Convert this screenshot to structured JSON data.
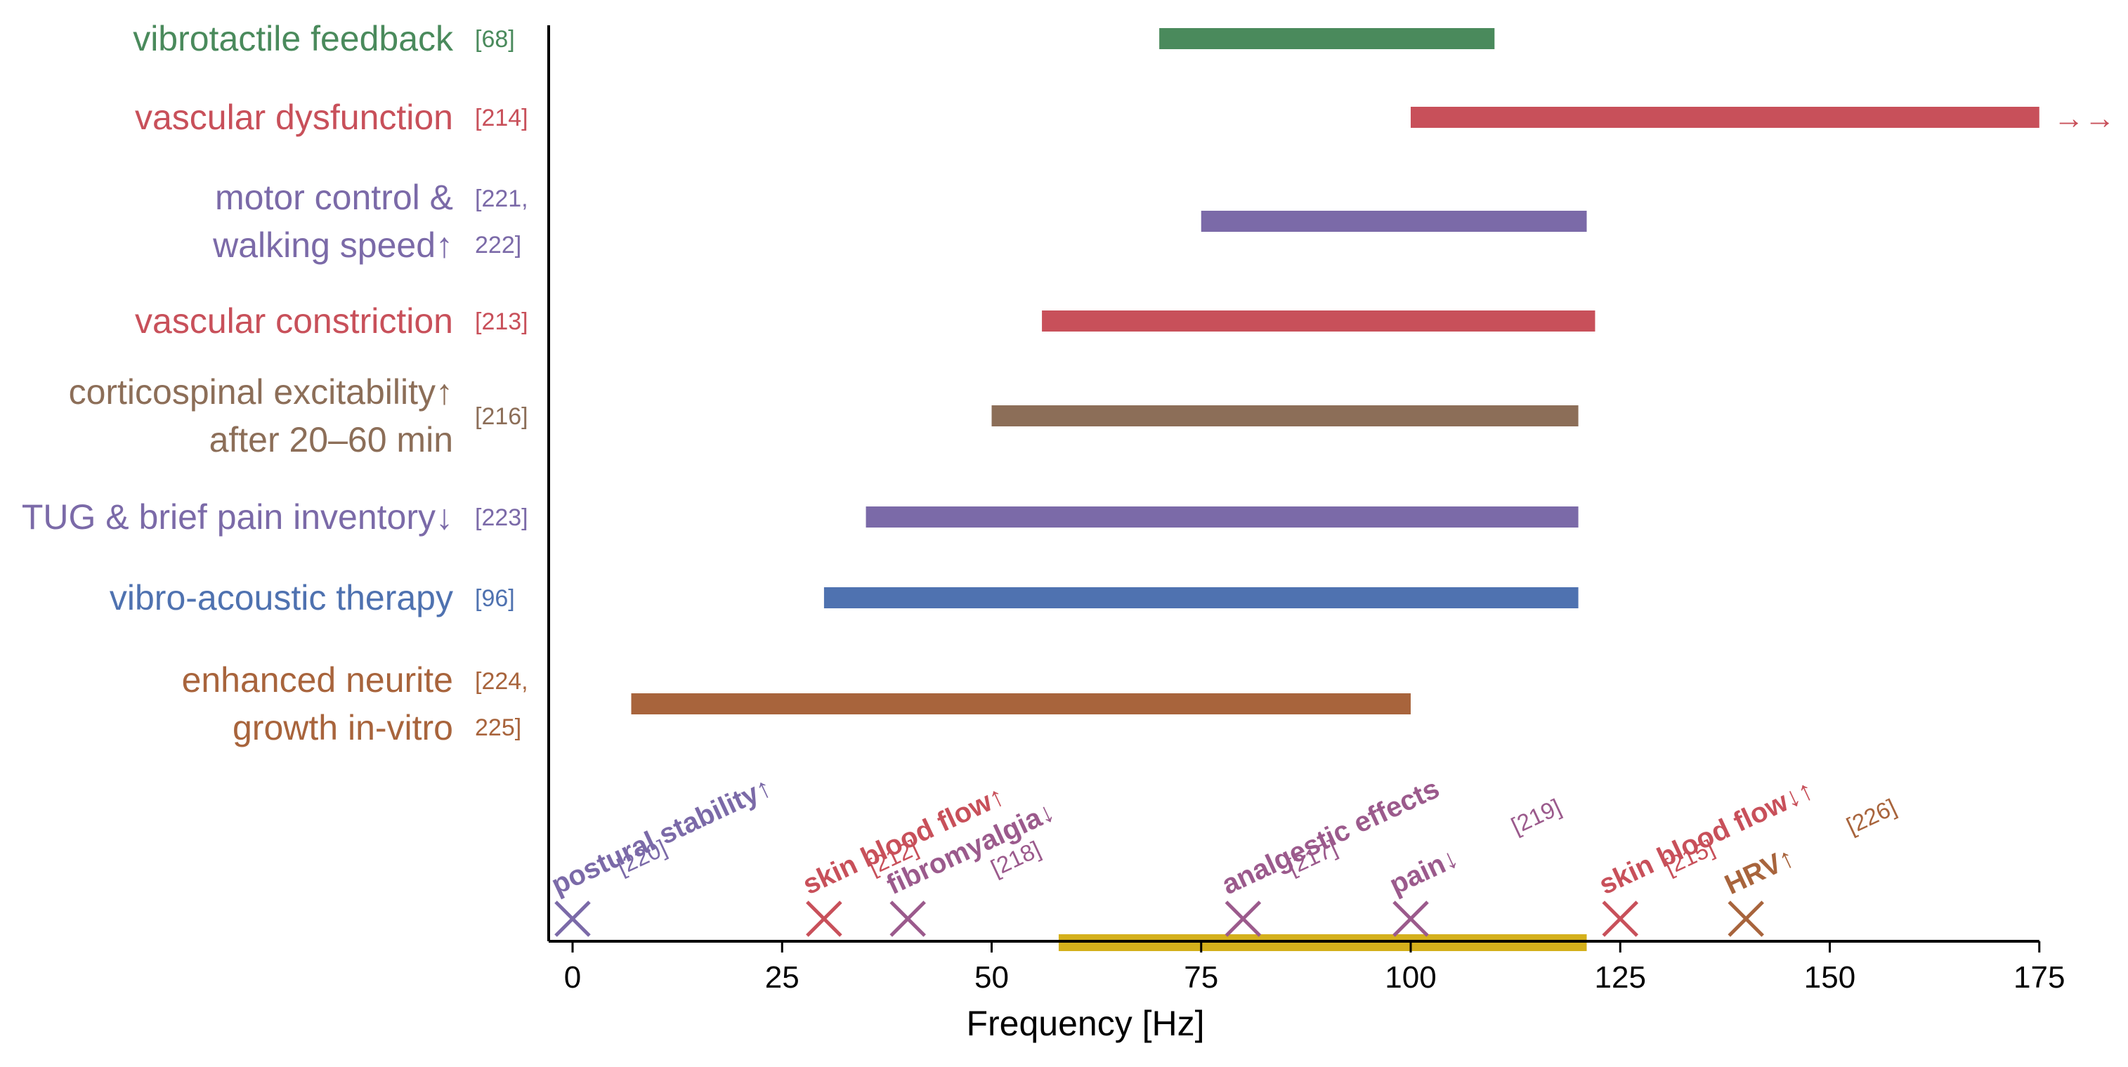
{
  "chart_data": {
    "type": "range-bar",
    "xlabel": "Frequency [Hz]",
    "xlim": [
      -5,
      175
    ],
    "xticks": [
      "0",
      "25",
      "50",
      "75",
      "100",
      "125",
      "150",
      "175"
    ],
    "ranges": [
      {
        "lines": [
          "vibrotactile feedback"
        ],
        "ref_lines": [
          "[68]"
        ],
        "start": 70,
        "end": 110,
        "color": "#4a8a5c"
      },
      {
        "lines": [
          "vascular dysfunction"
        ],
        "ref_lines": [
          "[214]"
        ],
        "start": 100,
        "end": 175,
        "color": "#c8505a",
        "continues": true,
        "continues_glyph": "→→"
      },
      {
        "lines": [
          "motor control &",
          "walking speed↑"
        ],
        "ref_lines": [
          "[221,",
          "222]"
        ],
        "start": 75,
        "end": 121,
        "color": "#7b6aa8"
      },
      {
        "lines": [
          "vascular constriction"
        ],
        "ref_lines": [
          "[213]"
        ],
        "start": 56,
        "end": 122,
        "color": "#c8505a"
      },
      {
        "lines": [
          "corticospinal excitability↑",
          "after 20–60 min"
        ],
        "ref_lines": [
          "[216]"
        ],
        "start": 50,
        "end": 120,
        "color": "#8c6e58"
      },
      {
        "lines": [
          "TUG & brief pain inventory↓"
        ],
        "ref_lines": [
          "[223]"
        ],
        "start": 35,
        "end": 120,
        "color": "#7b6aa8"
      },
      {
        "lines": [
          "vibro-acoustic therapy"
        ],
        "ref_lines": [
          "[96]"
        ],
        "start": 30,
        "end": 120,
        "color": "#4f72b0"
      },
      {
        "lines": [
          "enhanced neurite",
          "growth in-vitro"
        ],
        "ref_lines": [
          "[224,",
          "225]"
        ],
        "start": 7,
        "end": 100,
        "color": "#a8643c"
      }
    ],
    "markers": [
      {
        "x": 0,
        "label": "postural stability↑",
        "ref": "[220]",
        "color": "#7b6aa8"
      },
      {
        "x": 30,
        "label": "skin blood flow↑",
        "ref": "[212]",
        "color": "#c8505a"
      },
      {
        "x": 40,
        "label": "fibromyalgia↓",
        "ref": "[218]",
        "color": "#9b5a8c"
      },
      {
        "x": 80,
        "label": "analgestic effects",
        "ref": "[217]",
        "color": "#9b5a8c"
      },
      {
        "x": 100,
        "label": "pain↓",
        "ref": "[219]",
        "color": "#9b5a8c"
      },
      {
        "x": 125,
        "label": "skin blood flow↓↑",
        "ref": "[215]",
        "color": "#c8505a"
      },
      {
        "x": 140,
        "label": "HRV↑",
        "ref": "[226]",
        "color": "#a8643c"
      }
    ],
    "highlight_range": {
      "start": 58,
      "end": 121,
      "color": "#d4b01c"
    },
    "axis_color": "#000000"
  }
}
